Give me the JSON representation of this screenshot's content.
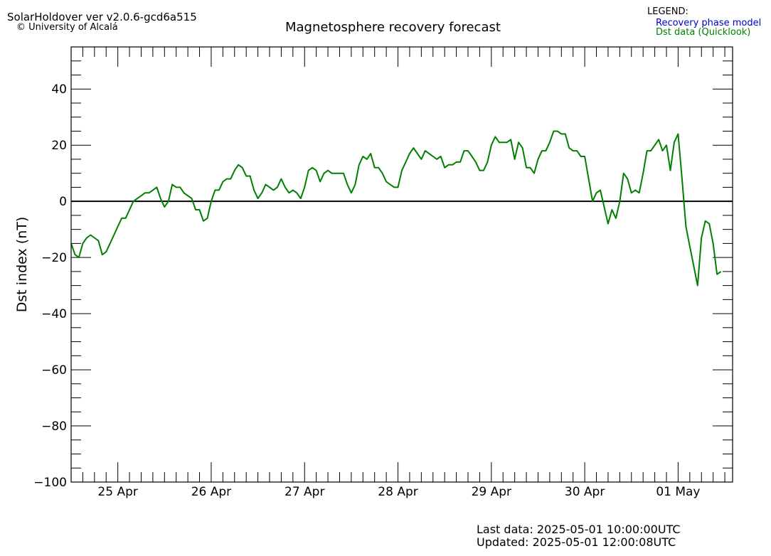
{
  "header": {
    "app_title": "SolarHoldover ver v2.0.6-gcd6a515",
    "copyright": "© University of Alcalá"
  },
  "legend": {
    "title": "LEGEND:",
    "items": [
      {
        "label": "Recovery phase model",
        "color": "#0000cc"
      },
      {
        "label": "Dst data (Quicklook)",
        "color": "#008000"
      }
    ]
  },
  "footer": {
    "last_data": "Last data: 2025-05-01 10:00:00UTC",
    "updated": "Updated: 2025-05-01 12:00:08UTC"
  },
  "chart_data": {
    "type": "line",
    "title": "Magnetosphere recovery forecast",
    "ylabel": "Dst index (nT)",
    "xlabel": "",
    "ylim": [
      -100,
      55
    ],
    "xlim": [
      "2025-04-24T12:00",
      "2025-05-01T14:00"
    ],
    "yticks": [
      40,
      20,
      0,
      -20,
      -40,
      -60,
      -80,
      -100
    ],
    "ytick_labels": [
      "40",
      "20",
      "0",
      "−20",
      "−40",
      "−60",
      "−80",
      "−100"
    ],
    "xticks": [
      "2025-04-25T00:00",
      "2025-04-26T00:00",
      "2025-04-27T00:00",
      "2025-04-28T00:00",
      "2025-04-29T00:00",
      "2025-04-30T00:00",
      "2025-05-01T00:00"
    ],
    "xtick_labels": [
      "25 Apr",
      "26 Apr",
      "27 Apr",
      "28 Apr",
      "29 Apr",
      "30 Apr",
      "01 May"
    ],
    "grid": false,
    "legend_position": "top-right",
    "reference_line": {
      "y": 0,
      "color": "#000000"
    },
    "series": [
      {
        "name": "Dst data (Quicklook)",
        "color": "#008000",
        "start": "2025-04-24T12:00",
        "step_hours": 1,
        "values": [
          -15,
          -19,
          -20,
          -15,
          -13,
          -12,
          -13,
          -14,
          -19,
          -18,
          -15,
          -12,
          -9,
          -6,
          -6,
          -3,
          0,
          1,
          2,
          3,
          3,
          4,
          5,
          1,
          -2,
          0,
          6,
          5,
          5,
          3,
          2,
          1,
          -3,
          -3,
          -7,
          -6,
          0,
          4,
          4,
          7,
          8,
          8,
          11,
          13,
          12,
          9,
          9,
          4,
          1,
          3,
          6,
          5,
          4,
          5,
          8,
          5,
          3,
          4,
          3,
          1,
          5,
          11,
          12,
          11,
          7,
          10,
          11,
          10,
          10,
          10,
          10,
          6,
          3,
          6,
          13,
          16,
          15,
          17,
          12,
          12,
          10,
          7,
          6,
          5,
          5,
          11,
          14,
          17,
          19,
          17,
          15,
          18,
          17,
          16,
          15,
          16,
          12,
          13,
          13,
          14,
          14,
          18,
          18,
          16,
          14,
          11,
          11,
          14,
          20,
          23,
          21,
          21,
          21,
          22,
          15,
          21,
          19,
          12,
          12,
          10,
          15,
          18,
          18,
          21,
          25,
          25,
          24,
          24,
          19,
          18,
          18,
          16,
          16,
          8,
          0,
          3,
          4,
          -2,
          -8,
          -3,
          -6,
          0,
          10,
          8,
          3,
          4,
          3,
          10,
          18,
          18,
          20,
          22,
          18,
          20,
          11,
          21,
          24,
          8,
          -9,
          -16,
          -23,
          -30,
          -13,
          -7,
          -8,
          -15,
          -26,
          -25
        ]
      }
    ]
  }
}
